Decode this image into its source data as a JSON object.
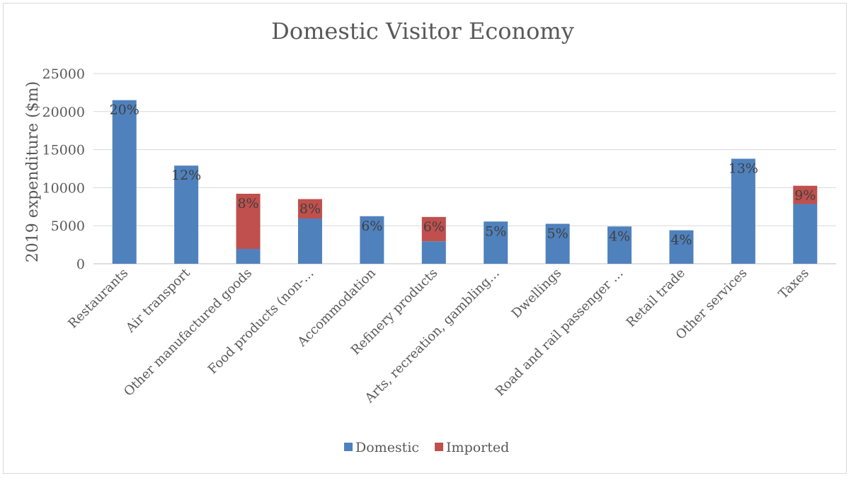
{
  "chart_data": {
    "type": "bar",
    "stacked": true,
    "title": "Domestic Visitor Economy",
    "xlabel": "",
    "ylabel": "2019 expenditure ($m)",
    "ylim": [
      0,
      25000
    ],
    "yticks": [
      0,
      5000,
      10000,
      15000,
      20000,
      25000
    ],
    "grid": true,
    "legend_position": "bottom",
    "categories": [
      "Restaurants",
      "Air transport",
      "Other manufactured goods",
      "Food products (non-…",
      "Accommodation",
      "Refinery products",
      "Arts, recreation, gambling…",
      "Dwellings",
      "Road and rail passenger …",
      "Retail trade",
      "Other services",
      "Taxes"
    ],
    "series": [
      {
        "name": "Domestic",
        "color": "#4f81bd",
        "values": [
          21500,
          12900,
          1950,
          5950,
          6250,
          2950,
          5550,
          5250,
          4900,
          4400,
          13800,
          7850
        ]
      },
      {
        "name": "Imported",
        "color": "#c0504d",
        "values": [
          0,
          0,
          7250,
          2550,
          0,
          3200,
          0,
          0,
          0,
          0,
          0,
          2400
        ]
      }
    ],
    "data_labels": [
      "20%",
      "12%",
      "8%",
      "8%",
      "6%",
      "6%",
      "5%",
      "5%",
      "4%",
      "4%",
      "13%",
      "9%"
    ]
  }
}
